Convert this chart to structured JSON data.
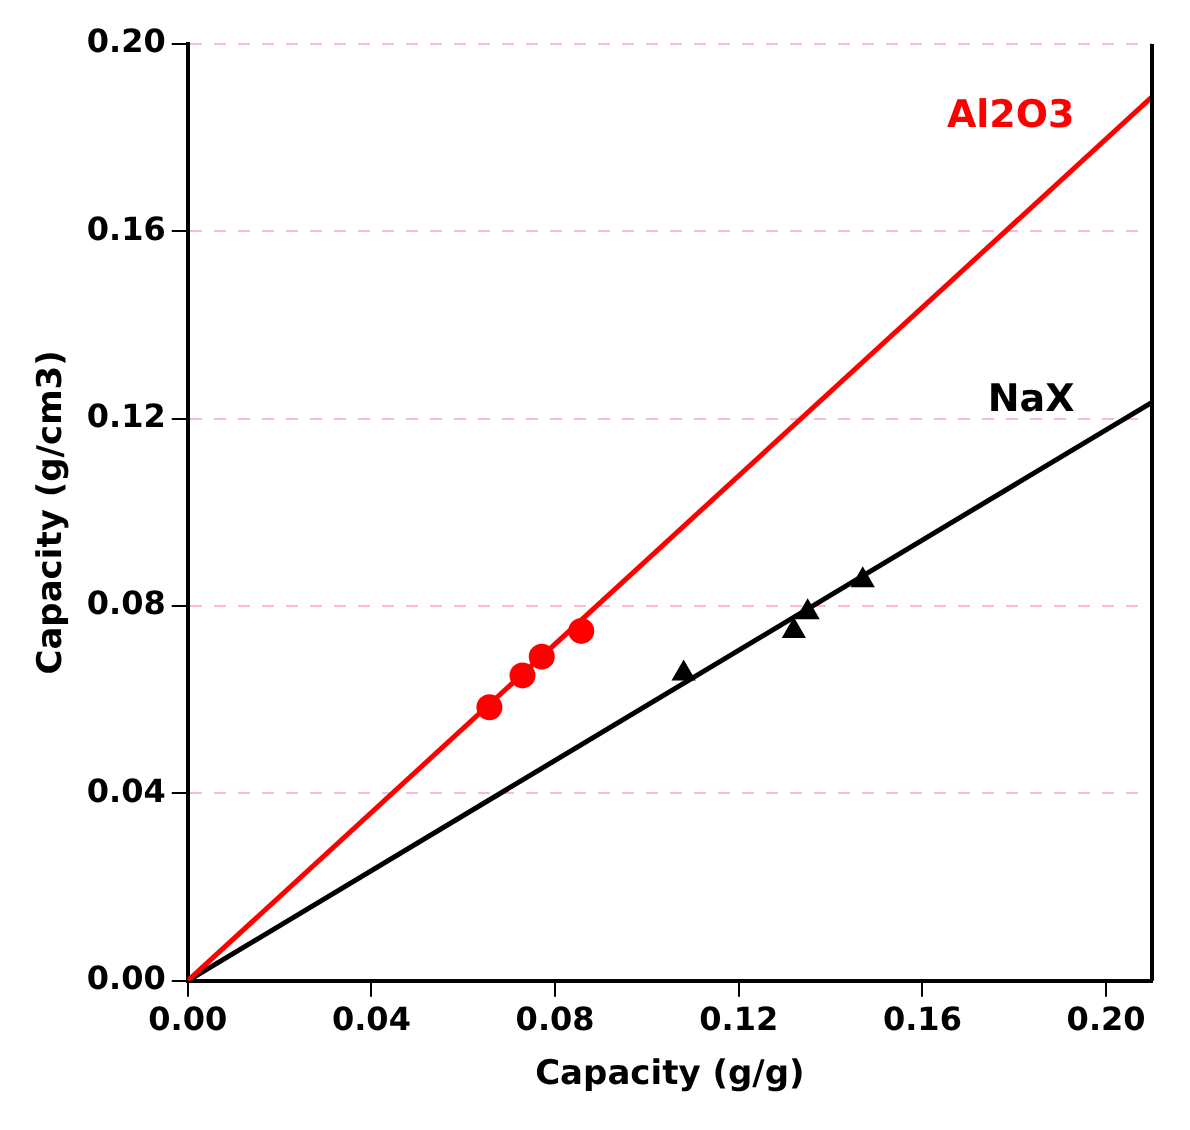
{
  "chart_data": {
    "type": "scatter",
    "xlabel": "Capacity (g/g)",
    "ylabel": "Capacity (g/cm3)",
    "xlim": [
      0,
      0.21
    ],
    "ylim": [
      0,
      0.2
    ],
    "xticks": [
      {
        "value": 0,
        "label": "0.00"
      },
      {
        "value": 0.04,
        "label": "0.04"
      },
      {
        "value": 0.08,
        "label": "0.08"
      },
      {
        "value": 0.12,
        "label": "0.12"
      },
      {
        "value": 0.16,
        "label": "0.16"
      },
      {
        "value": 0.2,
        "label": "0.20"
      }
    ],
    "yticks": [
      {
        "value": 0,
        "label": "0.00"
      },
      {
        "value": 0.04,
        "label": "0.04"
      },
      {
        "value": 0.08,
        "label": "0.08"
      },
      {
        "value": 0.12,
        "label": "0.12"
      },
      {
        "value": 0.16,
        "label": "0.16"
      },
      {
        "value": 0.2,
        "label": "0.20"
      }
    ],
    "grid": "y",
    "legend": false,
    "series": [
      {
        "type": "scatter",
        "color": "#ff0000",
        "marker": "circle",
        "x": [
          0.0657,
          0.0729,
          0.0771,
          0.0857
        ],
        "values": [
          0.0584,
          0.0652,
          0.0692,
          0.0747
        ]
      },
      {
        "type": "line",
        "name": "Al2O3",
        "color": "#ff0000",
        "marker": "none",
        "x": [
          0,
          0.21
        ],
        "values": [
          0,
          0.1887
        ]
      },
      {
        "type": "scatter",
        "color": "#000000",
        "marker": "triangle",
        "x": [
          0.108,
          0.132,
          0.135,
          0.147
        ],
        "values": [
          0.0656,
          0.0747,
          0.0787,
          0.0855
        ]
      },
      {
        "type": "line",
        "name": "NaX",
        "color": "#000000",
        "marker": "none",
        "x": [
          0,
          0.21
        ],
        "values": [
          0,
          0.1235
        ]
      }
    ]
  }
}
